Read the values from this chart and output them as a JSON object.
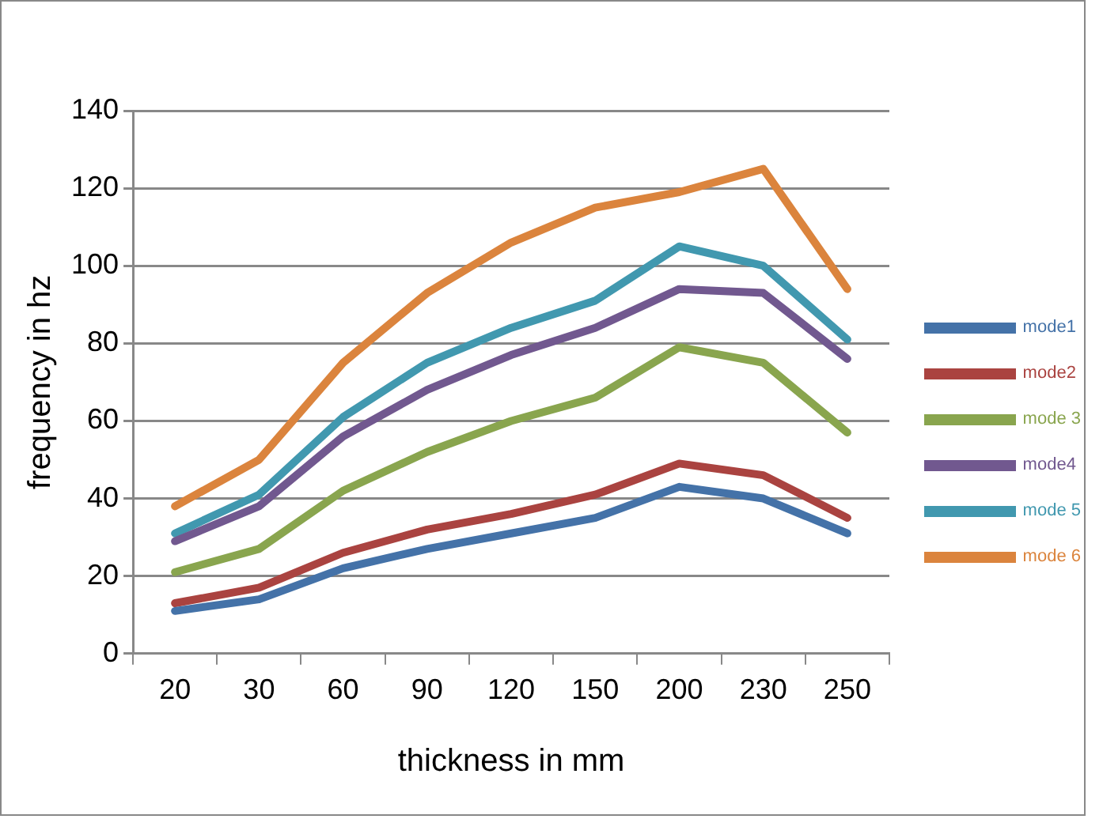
{
  "chart_data": {
    "type": "line",
    "xlabel": "thickness in mm",
    "ylabel": "frequency in hz",
    "categories": [
      "20",
      "30",
      "60",
      "90",
      "120",
      "150",
      "200",
      "230",
      "250"
    ],
    "series": [
      {
        "name": "mode1",
        "color": "#4472a8",
        "values": [
          11,
          14,
          22,
          27,
          31,
          35,
          43,
          40,
          31
        ]
      },
      {
        "name": "mode2",
        "color": "#aa4340",
        "values": [
          13,
          17,
          26,
          32,
          36,
          41,
          49,
          46,
          35
        ]
      },
      {
        "name": "mode 3",
        "color": "#89a54e",
        "values": [
          21,
          27,
          42,
          52,
          60,
          66,
          79,
          75,
          57
        ]
      },
      {
        "name": "mode4",
        "color": "#71588f",
        "values": [
          29,
          38,
          56,
          68,
          77,
          84,
          94,
          93,
          76
        ]
      },
      {
        "name": "mode 5",
        "color": "#4198af",
        "values": [
          31,
          41,
          61,
          75,
          84,
          91,
          105,
          100,
          81
        ]
      },
      {
        "name": "mode 6",
        "color": "#db843d",
        "values": [
          38,
          50,
          75,
          93,
          106,
          115,
          119,
          125,
          94
        ]
      }
    ],
    "ylim": [
      0,
      140
    ],
    "yticks": [
      0,
      20,
      40,
      60,
      80,
      100,
      120,
      140
    ],
    "grid": "y",
    "legend": "right",
    "marker": "none",
    "line_style": "solid"
  }
}
